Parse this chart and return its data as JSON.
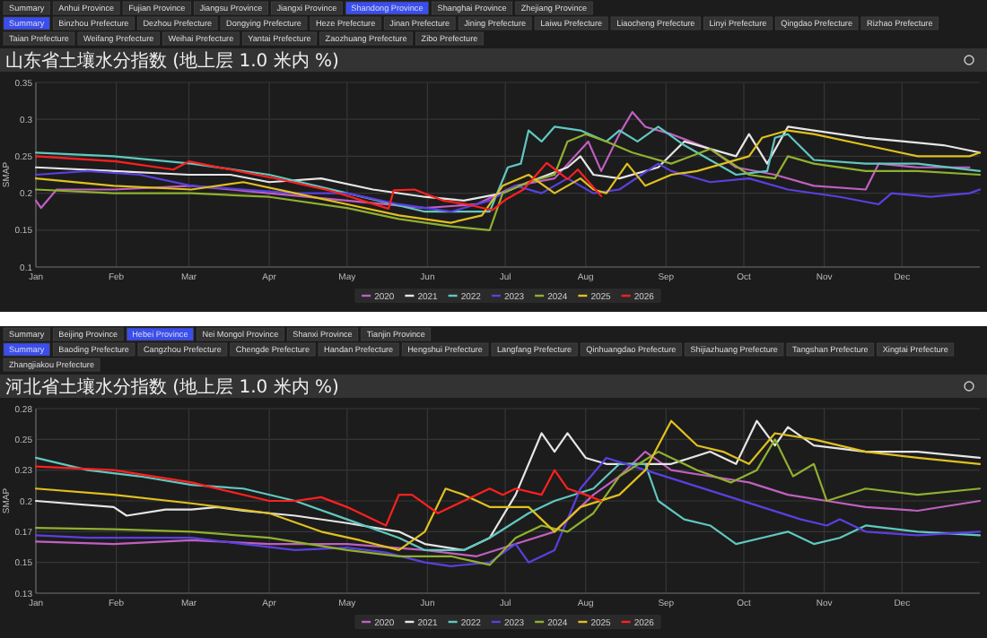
{
  "chart_data": [
    {
      "type": "line",
      "title": "山东省土壤水分指数 (地上层 1.0 米内 %)",
      "ylabel": "SMAP",
      "annotations": [
        "Summary",
        "Anhui Province",
        "Fujian Province",
        "Jiangsu Province",
        "Jiangxi Province",
        "Shandong Province",
        "Shanghai Province",
        "Zhejiang Province",
        "Summary",
        "Binzhou Prefecture",
        "Dezhou Prefecture",
        "Dongying Prefecture",
        "Heze Prefecture",
        "Jinan Prefecture",
        "Jining Prefecture",
        "Laiwu Prefecture",
        "Liaocheng Prefecture",
        "Linyi Prefecture",
        "Qingdao Prefecture",
        "Rizhao Prefecture",
        "Taian Prefecture",
        "Weifang Prefecture",
        "Weihai Prefecture",
        "Yantai Prefecture",
        "Zaozhuang Prefecture",
        "Zibo Prefecture"
      ],
      "xlim": [
        "--01-01",
        "--12-31"
      ],
      "xticks": [
        {
          "value": "--01-01",
          "label": "Jan"
        },
        {
          "value": "--02-01",
          "label": "Feb"
        },
        {
          "value": "--03-01",
          "label": "Mar"
        },
        {
          "value": "--04-01",
          "label": "Apr"
        },
        {
          "value": "--05-01",
          "label": "May"
        },
        {
          "value": "--06-01",
          "label": "Jun"
        },
        {
          "value": "--07-01",
          "label": "Jul"
        },
        {
          "value": "--08-01",
          "label": "Aug"
        },
        {
          "value": "--09-01",
          "label": "Sep"
        },
        {
          "value": "--10-01",
          "label": "Oct"
        },
        {
          "value": "--11-01",
          "label": "Nov"
        },
        {
          "value": "--12-01",
          "label": "Dec"
        }
      ],
      "ylim": [
        0.1,
        0.35
      ],
      "yticks": [
        0.1,
        0.15,
        0.2,
        0.25,
        0.3,
        0.35
      ],
      "grid": true,
      "legend": "bottom",
      "series": [
        {
          "name": "2020",
          "color": "#c060c0",
          "x": [
            "--01-01",
            "--01-03",
            "--01-09",
            "--01-31",
            "--03-02",
            "--04-01",
            "--05-01",
            "--05-31",
            "--06-20",
            "--07-05",
            "--07-20",
            "--08-02",
            "--08-07",
            "--08-14",
            "--08-19",
            "--08-24",
            "--09-03",
            "--09-18",
            "--09-28",
            "--10-13",
            "--10-28",
            "--11-17",
            "--11-22",
            "--12-07",
            "--12-27"
          ],
          "values": [
            0.19,
            0.18,
            0.205,
            0.205,
            0.21,
            0.2,
            0.19,
            0.18,
            0.185,
            0.21,
            0.22,
            0.27,
            0.23,
            0.28,
            0.31,
            0.29,
            0.28,
            0.26,
            0.235,
            0.225,
            0.21,
            0.205,
            0.24,
            0.235,
            0.235
          ]
        },
        {
          "name": "2021",
          "color": "#e6e6e6",
          "x": [
            "--01-01",
            "--01-31",
            "--03-01",
            "--03-17",
            "--04-01",
            "--04-21",
            "--05-11",
            "--05-31",
            "--06-15",
            "--06-30",
            "--07-10",
            "--07-25",
            "--07-30",
            "--08-04",
            "--08-14",
            "--08-29",
            "--09-08",
            "--09-18",
            "--09-28",
            "--10-03",
            "--10-10",
            "--10-18",
            "--10-28",
            "--11-17",
            "--12-02",
            "--12-17",
            "--12-31"
          ],
          "values": [
            0.235,
            0.23,
            0.225,
            0.225,
            0.215,
            0.22,
            0.205,
            0.195,
            0.19,
            0.2,
            0.215,
            0.235,
            0.25,
            0.225,
            0.22,
            0.235,
            0.27,
            0.26,
            0.25,
            0.28,
            0.24,
            0.29,
            0.285,
            0.275,
            0.27,
            0.265,
            0.255
          ]
        },
        {
          "name": "2022",
          "color": "#60c8c0",
          "x": [
            "--01-01",
            "--01-31",
            "--03-02",
            "--04-01",
            "--05-01",
            "--05-31",
            "--06-25",
            "--07-02",
            "--07-07",
            "--07-10",
            "--07-15",
            "--07-20",
            "--07-30",
            "--08-09",
            "--08-14",
            "--08-21",
            "--08-29",
            "--09-08",
            "--09-18",
            "--09-28",
            "--10-10",
            "--10-13",
            "--10-18",
            "--10-28",
            "--11-17",
            "--12-07",
            "--12-31"
          ],
          "values": [
            0.255,
            0.25,
            0.24,
            0.225,
            0.2,
            0.175,
            0.175,
            0.235,
            0.24,
            0.285,
            0.27,
            0.29,
            0.285,
            0.27,
            0.285,
            0.27,
            0.29,
            0.265,
            0.245,
            0.225,
            0.23,
            0.275,
            0.28,
            0.245,
            0.24,
            0.24,
            0.23
          ]
        },
        {
          "name": "2023",
          "color": "#5a40e0",
          "x": [
            "--01-01",
            "--01-21",
            "--02-10",
            "--03-02",
            "--03-22",
            "--04-11",
            "--05-01",
            "--05-21",
            "--06-10",
            "--06-25",
            "--07-05",
            "--07-15",
            "--07-25",
            "--08-04",
            "--08-14",
            "--08-29",
            "--09-03",
            "--09-18",
            "--10-03",
            "--10-18",
            "--11-07",
            "--11-22",
            "--11-27",
            "--12-12",
            "--12-27",
            "--12-31"
          ],
          "values": [
            0.225,
            0.23,
            0.225,
            0.21,
            0.205,
            0.2,
            0.2,
            0.185,
            0.175,
            0.19,
            0.21,
            0.2,
            0.22,
            0.2,
            0.205,
            0.24,
            0.23,
            0.215,
            0.22,
            0.205,
            0.195,
            0.185,
            0.2,
            0.195,
            0.2,
            0.205
          ]
        },
        {
          "name": "2024",
          "color": "#90b030",
          "x": [
            "--01-01",
            "--01-31",
            "--03-02",
            "--04-01",
            "--05-01",
            "--05-21",
            "--06-10",
            "--06-25",
            "--06-30",
            "--07-10",
            "--07-20",
            "--07-25",
            "--08-01",
            "--08-09",
            "--08-19",
            "--09-03",
            "--09-18",
            "--10-03",
            "--10-13",
            "--10-18",
            "--10-28",
            "--11-17",
            "--12-07",
            "--12-31"
          ],
          "values": [
            0.205,
            0.2,
            0.2,
            0.195,
            0.18,
            0.165,
            0.155,
            0.15,
            0.2,
            0.215,
            0.225,
            0.27,
            0.28,
            0.27,
            0.255,
            0.24,
            0.26,
            0.225,
            0.22,
            0.25,
            0.24,
            0.23,
            0.23,
            0.225
          ]
        },
        {
          "name": "2025",
          "color": "#e0c020",
          "x": [
            "--01-01",
            "--01-31",
            "--03-02",
            "--03-22",
            "--04-11",
            "--05-01",
            "--05-21",
            "--06-10",
            "--06-22",
            "--06-30",
            "--07-10",
            "--07-20",
            "--07-30",
            "--08-04",
            "--08-09",
            "--08-17",
            "--08-24",
            "--09-03",
            "--09-13",
            "--09-23",
            "--10-03",
            "--10-08",
            "--10-18",
            "--10-28",
            "--11-17",
            "--12-07",
            "--12-27",
            "--12-31"
          ],
          "values": [
            0.22,
            0.21,
            0.205,
            0.215,
            0.2,
            0.185,
            0.17,
            0.16,
            0.17,
            0.21,
            0.225,
            0.2,
            0.22,
            0.205,
            0.2,
            0.24,
            0.21,
            0.225,
            0.23,
            0.24,
            0.25,
            0.275,
            0.285,
            0.28,
            0.265,
            0.25,
            0.25,
            0.255
          ]
        },
        {
          "name": "2026",
          "color": "#ff2020",
          "x": [
            "--01-01",
            "--02-01",
            "--02-23",
            "--03-01",
            "--04-02",
            "--04-24",
            "--05-17",
            "--05-19",
            "--05-27",
            "--06-07",
            "--06-16",
            "--06-26",
            "--07-01",
            "--07-08",
            "--07-17",
            "--07-25",
            "--07-29",
            "--08-07"
          ],
          "values": [
            0.25,
            0.243,
            0.232,
            0.243,
            0.221,
            0.204,
            0.179,
            0.204,
            0.205,
            0.19,
            0.185,
            0.177,
            0.191,
            0.205,
            0.241,
            0.219,
            0.232,
            0.196
          ]
        }
      ]
    },
    {
      "type": "line",
      "title": "河北省土壤水分指数 (地上层 1.0 米内 %)",
      "ylabel": "SMAP",
      "annotations": [
        "Summary",
        "Beijing Province",
        "Hebei Province",
        "Nei Mongol Province",
        "Shanxi Province",
        "Tianjin Province",
        "Summary",
        "Baoding Prefecture",
        "Cangzhou Prefecture",
        "Chengde Prefecture",
        "Handan Prefecture",
        "Hengshui Prefecture",
        "Langfang Prefecture",
        "Qinhuangdao Prefecture",
        "Shijiazhuang Prefecture",
        "Tangshan Prefecture",
        "Xingtai Prefecture",
        "Zhangjiakou Prefecture"
      ],
      "xlim": [
        "--01-01",
        "--12-31"
      ],
      "xticks": [
        {
          "value": "--01-01",
          "label": "Jan"
        },
        {
          "value": "--02-01",
          "label": "Feb"
        },
        {
          "value": "--03-01",
          "label": "Mar"
        },
        {
          "value": "--04-01",
          "label": "Apr"
        },
        {
          "value": "--05-01",
          "label": "May"
        },
        {
          "value": "--06-01",
          "label": "Jun"
        },
        {
          "value": "--07-01",
          "label": "Jul"
        },
        {
          "value": "--08-01",
          "label": "Aug"
        },
        {
          "value": "--09-01",
          "label": "Sep"
        },
        {
          "value": "--10-01",
          "label": "Oct"
        },
        {
          "value": "--11-01",
          "label": "Nov"
        },
        {
          "value": "--12-01",
          "label": "Dec"
        }
      ],
      "ylim": [
        0.125,
        0.275
      ],
      "yticks": [
        {
          "value": 0.125,
          "label": "0.13"
        },
        {
          "value": 0.15,
          "label": "0.15"
        },
        {
          "value": 0.175,
          "label": "0.17"
        },
        {
          "value": 0.2,
          "label": "0.2"
        },
        {
          "value": 0.225,
          "label": "0.23"
        },
        {
          "value": 0.25,
          "label": "0.25"
        },
        {
          "value": 0.275,
          "label": "0.28"
        }
      ],
      "grid": true,
      "legend": "bottom",
      "series": [
        {
          "name": "2020",
          "color": "#c060c0",
          "x": [
            "--01-01",
            "--01-31",
            "--03-02",
            "--04-01",
            "--05-01",
            "--05-31",
            "--06-20",
            "--07-05",
            "--07-20",
            "--08-04",
            "--08-14",
            "--08-24",
            "--09-03",
            "--09-18",
            "--10-03",
            "--10-18",
            "--11-02",
            "--11-17",
            "--12-07",
            "--12-31"
          ],
          "values": [
            0.167,
            0.165,
            0.168,
            0.165,
            0.165,
            0.16,
            0.155,
            0.165,
            0.175,
            0.205,
            0.22,
            0.24,
            0.225,
            0.22,
            0.215,
            0.205,
            0.2,
            0.195,
            0.192,
            0.2
          ]
        },
        {
          "name": "2021",
          "color": "#e6e6e6",
          "x": [
            "--01-01",
            "--01-31",
            "--02-05",
            "--02-20",
            "--03-02",
            "--03-12",
            "--03-22",
            "--04-11",
            "--05-01",
            "--05-21",
            "--05-31",
            "--06-15",
            "--06-25",
            "--07-05",
            "--07-15",
            "--07-20",
            "--07-25",
            "--08-01",
            "--08-09",
            "--08-24",
            "--09-03",
            "--09-18",
            "--09-28",
            "--10-06",
            "--10-13",
            "--10-18",
            "--10-28",
            "--11-17",
            "--12-07",
            "--12-31"
          ],
          "values": [
            0.2,
            0.195,
            0.188,
            0.193,
            0.193,
            0.195,
            0.192,
            0.188,
            0.182,
            0.175,
            0.165,
            0.16,
            0.17,
            0.205,
            0.255,
            0.24,
            0.255,
            0.235,
            0.23,
            0.23,
            0.23,
            0.24,
            0.23,
            0.265,
            0.245,
            0.26,
            0.245,
            0.24,
            0.24,
            0.235
          ]
        },
        {
          "name": "2022",
          "color": "#60c8c0",
          "x": [
            "--01-01",
            "--01-21",
            "--02-10",
            "--03-02",
            "--03-22",
            "--04-11",
            "--05-01",
            "--05-21",
            "--05-31",
            "--06-15",
            "--06-25",
            "--07-10",
            "--07-20",
            "--08-04",
            "--08-14",
            "--08-24",
            "--08-29",
            "--09-08",
            "--09-18",
            "--09-28",
            "--10-08",
            "--10-18",
            "--10-28",
            "--11-07",
            "--11-17",
            "--12-07",
            "--12-31"
          ],
          "values": [
            0.235,
            0.225,
            0.22,
            0.213,
            0.21,
            0.2,
            0.185,
            0.17,
            0.16,
            0.16,
            0.17,
            0.19,
            0.2,
            0.21,
            0.23,
            0.23,
            0.2,
            0.185,
            0.18,
            0.165,
            0.17,
            0.175,
            0.165,
            0.17,
            0.18,
            0.175,
            0.172
          ]
        },
        {
          "name": "2023",
          "color": "#5a40e0",
          "x": [
            "--01-01",
            "--01-21",
            "--02-10",
            "--03-02",
            "--03-22",
            "--04-11",
            "--05-01",
            "--05-16",
            "--05-31",
            "--06-10",
            "--06-25",
            "--07-05",
            "--07-10",
            "--07-20",
            "--07-30",
            "--08-09",
            "--08-24",
            "--09-08",
            "--09-23",
            "--10-08",
            "--10-23",
            "--11-02",
            "--11-07",
            "--11-17",
            "--12-07",
            "--12-31"
          ],
          "values": [
            0.172,
            0.17,
            0.17,
            0.17,
            0.165,
            0.16,
            0.162,
            0.158,
            0.15,
            0.147,
            0.15,
            0.165,
            0.15,
            0.16,
            0.21,
            0.235,
            0.225,
            0.215,
            0.205,
            0.195,
            0.185,
            0.18,
            0.185,
            0.175,
            0.172,
            0.175
          ]
        },
        {
          "name": "2024",
          "color": "#90b030",
          "x": [
            "--01-01",
            "--01-31",
            "--03-02",
            "--04-01",
            "--05-01",
            "--05-21",
            "--06-10",
            "--06-25",
            "--07-05",
            "--07-15",
            "--07-25",
            "--08-04",
            "--08-14",
            "--08-29",
            "--09-13",
            "--09-26",
            "--10-06",
            "--10-13",
            "--10-20",
            "--10-28",
            "--11-02",
            "--11-17",
            "--12-07",
            "--12-31"
          ],
          "values": [
            0.178,
            0.177,
            0.175,
            0.17,
            0.16,
            0.155,
            0.155,
            0.148,
            0.17,
            0.18,
            0.175,
            0.19,
            0.22,
            0.24,
            0.225,
            0.215,
            0.225,
            0.25,
            0.22,
            0.23,
            0.2,
            0.21,
            0.205,
            0.21
          ]
        },
        {
          "name": "2025",
          "color": "#e0c020",
          "x": [
            "--01-01",
            "--01-31",
            "--03-02",
            "--04-01",
            "--04-21",
            "--05-06",
            "--05-21",
            "--05-31",
            "--06-08",
            "--06-15",
            "--06-25",
            "--07-10",
            "--07-20",
            "--07-30",
            "--08-14",
            "--08-24",
            "--09-03",
            "--09-13",
            "--09-23",
            "--10-03",
            "--10-13",
            "--10-28",
            "--11-17",
            "--12-07",
            "--12-31"
          ],
          "values": [
            0.21,
            0.205,
            0.198,
            0.19,
            0.175,
            0.168,
            0.16,
            0.175,
            0.21,
            0.205,
            0.195,
            0.195,
            0.175,
            0.195,
            0.205,
            0.225,
            0.265,
            0.245,
            0.24,
            0.23,
            0.255,
            0.25,
            0.24,
            0.235,
            0.23
          ]
        },
        {
          "name": "2026",
          "color": "#ff2020",
          "x": [
            "--01-01",
            "--01-31",
            "--03-02",
            "--04-01",
            "--04-11",
            "--04-21",
            "--05-01",
            "--05-16",
            "--05-21",
            "--05-26",
            "--06-05",
            "--06-15",
            "--06-25",
            "--06-30",
            "--07-05",
            "--07-15",
            "--07-20",
            "--07-25",
            "--08-01",
            "--08-07"
          ],
          "values": [
            0.228,
            0.225,
            0.215,
            0.2,
            0.2,
            0.203,
            0.195,
            0.18,
            0.205,
            0.205,
            0.19,
            0.2,
            0.21,
            0.205,
            0.21,
            0.205,
            0.225,
            0.21,
            0.205,
            0.2
          ]
        }
      ]
    }
  ]
}
